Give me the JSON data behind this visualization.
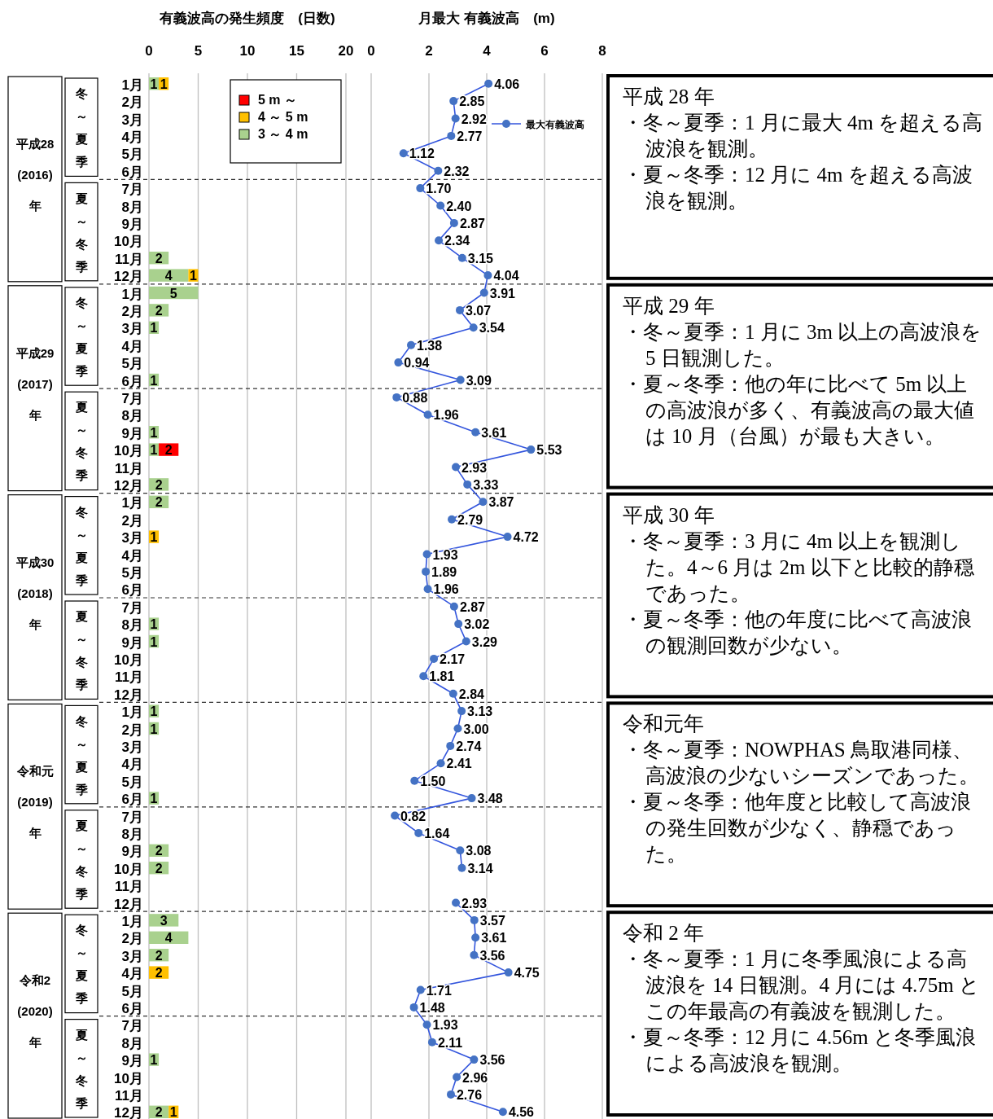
{
  "chart_data": [
    {
      "type": "bar",
      "orientation": "horizontal",
      "stacked": true,
      "title": "有義波高の発生頻度　(日数)",
      "categories": [
        "1月",
        "2月",
        "3月",
        "4月",
        "5月",
        "6月",
        "7月",
        "8月",
        "9月",
        "10月",
        "11月",
        "12月",
        "1月",
        "2月",
        "3月",
        "4月",
        "5月",
        "6月",
        "7月",
        "8月",
        "9月",
        "10月",
        "11月",
        "12月",
        "1月",
        "2月",
        "3月",
        "4月",
        "5月",
        "6月",
        "7月",
        "8月",
        "9月",
        "10月",
        "11月",
        "12月",
        "1月",
        "2月",
        "3月",
        "4月",
        "5月",
        "6月",
        "7月",
        "8月",
        "9月",
        "10月",
        "11月",
        "12月",
        "1月",
        "2月",
        "3月",
        "4月",
        "5月",
        "6月",
        "7月",
        "8月",
        "9月",
        "10月",
        "11月",
        "12月"
      ],
      "xlim": [
        0,
        20
      ],
      "xticks": [
        0,
        5,
        10,
        15,
        20
      ],
      "grid": "x",
      "legend": "top right",
      "data_labels": true,
      "series": [
        {
          "name": "3 ～ 4 m",
          "color": "#a9d18e",
          "values": [
            1,
            null,
            null,
            null,
            null,
            null,
            null,
            null,
            null,
            null,
            2,
            4,
            5,
            2,
            1,
            null,
            null,
            1,
            null,
            null,
            1,
            1,
            null,
            2,
            2,
            null,
            null,
            null,
            null,
            null,
            null,
            1,
            1,
            null,
            null,
            null,
            1,
            1,
            null,
            null,
            null,
            1,
            null,
            null,
            2,
            2,
            null,
            null,
            3,
            4,
            2,
            null,
            null,
            null,
            null,
            null,
            1,
            null,
            null,
            2
          ]
        },
        {
          "name": "4 ～ 5 m",
          "color": "#ffc000",
          "values": [
            1,
            null,
            null,
            null,
            null,
            null,
            null,
            null,
            null,
            null,
            null,
            1,
            null,
            null,
            null,
            null,
            null,
            null,
            null,
            null,
            null,
            null,
            null,
            null,
            null,
            null,
            1,
            null,
            null,
            null,
            null,
            null,
            null,
            null,
            null,
            null,
            null,
            null,
            null,
            null,
            null,
            null,
            null,
            null,
            null,
            null,
            null,
            null,
            null,
            null,
            null,
            2,
            null,
            null,
            null,
            null,
            null,
            null,
            null,
            1
          ]
        },
        {
          "name": "5 m ～",
          "color": "#ff0000",
          "values": [
            null,
            null,
            null,
            null,
            null,
            null,
            null,
            null,
            null,
            null,
            null,
            null,
            null,
            null,
            null,
            null,
            null,
            null,
            null,
            null,
            null,
            2,
            null,
            null,
            null,
            null,
            null,
            null,
            null,
            null,
            null,
            null,
            null,
            null,
            null,
            null,
            null,
            null,
            null,
            null,
            null,
            null,
            null,
            null,
            null,
            null,
            null,
            null,
            null,
            null,
            null,
            null,
            null,
            null,
            null,
            null,
            null,
            null,
            null,
            null
          ]
        }
      ],
      "annotations": [
        "平成28\n(2016)\n年",
        "平成29\n(2017)\n年",
        "平成30\n(2018)\n年",
        "令和元\n(2019)\n年",
        "令和2\n(2020)\n年",
        "冬～夏季",
        "夏～冬季",
        "冬～夏季",
        "夏～冬季",
        "冬～夏季",
        "夏～冬季",
        "冬～夏季",
        "夏～冬季",
        "冬～夏季",
        "夏～冬季"
      ]
    },
    {
      "type": "line",
      "orientation": "horizontal",
      "title": "月最大 有義波高　(m)",
      "categories": [
        "1月",
        "2月",
        "3月",
        "4月",
        "5月",
        "6月",
        "7月",
        "8月",
        "9月",
        "10月",
        "11月",
        "12月",
        "1月",
        "2月",
        "3月",
        "4月",
        "5月",
        "6月",
        "7月",
        "8月",
        "9月",
        "10月",
        "11月",
        "12月",
        "1月",
        "2月",
        "3月",
        "4月",
        "5月",
        "6月",
        "7月",
        "8月",
        "9月",
        "10月",
        "11月",
        "12月",
        "1月",
        "2月",
        "3月",
        "4月",
        "5月",
        "6月",
        "7月",
        "8月",
        "9月",
        "10月",
        "11月",
        "12月",
        "1月",
        "2月",
        "3月",
        "4月",
        "5月",
        "6月",
        "7月",
        "8月",
        "9月",
        "10月",
        "11月",
        "12月"
      ],
      "xlim": [
        0,
        8
      ],
      "xticks": [
        0,
        2,
        4,
        6,
        8
      ],
      "grid": "x",
      "tick_labels": "x",
      "legend": "top right",
      "marker": "circle",
      "series": [
        {
          "name": "最大有義波高",
          "color": "#3355dd",
          "values": [
            4.06,
            2.85,
            2.92,
            2.77,
            1.12,
            2.32,
            1.7,
            2.4,
            2.87,
            2.34,
            3.15,
            4.04,
            3.91,
            3.07,
            3.54,
            1.38,
            0.94,
            3.09,
            0.88,
            1.96,
            3.61,
            5.53,
            2.93,
            3.33,
            3.87,
            2.79,
            4.72,
            1.93,
            1.89,
            1.96,
            2.87,
            3.02,
            3.29,
            2.17,
            1.81,
            2.84,
            3.13,
            3.0,
            2.74,
            2.41,
            1.5,
            3.48,
            0.82,
            1.64,
            3.08,
            3.14,
            null,
            2.93,
            3.57,
            3.61,
            3.56,
            4.75,
            1.71,
            1.48,
            1.93,
            2.11,
            3.56,
            2.96,
            2.76,
            4.56
          ],
          "value_labels": [
            "4.06",
            "2.85",
            "2.92",
            "2.77",
            "1.12",
            "2.32",
            "1.70",
            "2.40",
            "2.87",
            "2.34",
            "3.15",
            "4.04",
            "3.91",
            "3.07",
            "3.54",
            "1.38",
            "0.94",
            "3.09",
            "0.88",
            "1.96",
            "3.61",
            "5.53",
            "2.93",
            "3.33",
            "3.87",
            "2.79",
            "4.72",
            "1.93",
            "1.89",
            "1.96",
            "2.87",
            "3.02",
            "3.29",
            "2.17",
            "1.81",
            "2.84",
            "3.13",
            "3.00",
            "2.74",
            "2.41",
            "1.50",
            "3.48",
            "0.82",
            "1.64",
            "3.08",
            "3.14",
            null,
            "2.93",
            "3.57",
            "3.61",
            "3.56",
            "4.75",
            "1.71",
            "1.48",
            "1.93",
            "2.11",
            "3.56",
            "2.96",
            "2.76",
            "4.56"
          ]
        }
      ]
    },
    {
      "type": "other",
      "title": "平成 28 年",
      "annotations": [
        "・冬～夏季：1 月に最大 4m を超える高波浪を観測。",
        "・夏～冬季：12 月に 4m を超える高波浪を観測。"
      ]
    },
    {
      "type": "other",
      "title": "平成 29 年",
      "annotations": [
        "・冬～夏季：1 月に 3m 以上の高波浪を 5 日観測した。",
        "・夏～冬季：他の年に比べて 5m 以上の高波浪が多く、有義波高の最大値は 10 月（台風）が最も大きい。"
      ]
    },
    {
      "type": "other",
      "title": "平成 30 年",
      "annotations": [
        "・冬～夏季：3 月に 4m 以上を観測した。4～6 月は 2m 以下と比較的静穏であった。",
        "・夏～冬季：他の年度に比べて高波浪の観測回数が少ない。"
      ]
    },
    {
      "type": "other",
      "title": "令和元年",
      "annotations": [
        "・冬～夏季：NOWPHAS 鳥取港同様、高波浪の少ないシーズンであった。",
        "・夏～冬季：他年度と比較して高波浪の発生回数が少なく、静穏であった。"
      ]
    },
    {
      "type": "other",
      "title": "令和 2 年",
      "annotations": [
        "・冬～夏季：1 月に冬季風浪による高波浪を 14 日観測。4 月には 4.75m とこの年最高の有義波を観測した。",
        "・夏～冬季：12 月に 4.56m と冬季風浪による高波浪を観測。"
      ]
    }
  ]
}
